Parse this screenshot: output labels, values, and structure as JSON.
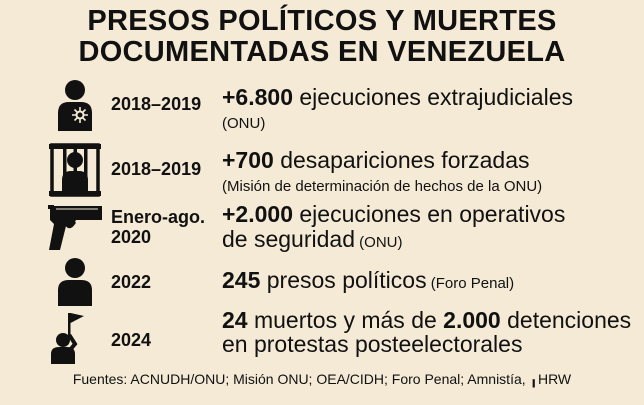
{
  "title": {
    "line1": "PRESOS POLÍTICOS Y MUERTES",
    "line2": "DOCUMENTADAS EN VENEZUELA"
  },
  "rows": [
    {
      "icon": "person-with-wound-icon",
      "year": "2018–2019",
      "figure": "+6.800",
      "text": " ejecuciones extrajudiciales",
      "source": "(ONU)"
    },
    {
      "icon": "prisoner-behind-bars-icon",
      "year": "2018–2019",
      "figure": "+700",
      "text": " desapariciones forzadas",
      "source": "(Misión de determinación de hechos de la ONU)"
    },
    {
      "icon": "pistol-icon",
      "year_line1": "Enero-ago.",
      "year_line2": "2020",
      "figure": "+2.000",
      "text": " ejecuciones en operativos",
      "text_line2": "de seguridad",
      "source": " (ONU)"
    },
    {
      "icon": "person-icon",
      "year": "2022",
      "figure": "245",
      "text": " presos políticos",
      "source": " (Foro Penal)"
    },
    {
      "icon": "protester-with-flag-icon",
      "year": "2024",
      "figure1": "24",
      "text1": " muertos y más de ",
      "figure2": "2.000",
      "text2": " detenciones",
      "text_line2": "en protestas posteelectorales"
    }
  ],
  "sources": "Fuentes: ACNUDH/ONU; Misión ONU; OEA/CIDH; Foro Penal; Amnistía, ╻HRW",
  "colors": {
    "background": "#f5ead6",
    "text": "#111111"
  }
}
